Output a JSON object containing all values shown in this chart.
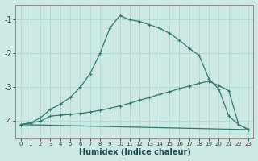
{
  "xlabel": "Humidex (Indice chaleur)",
  "bg_color": "#cce9e5",
  "grid_color": "#b0d8d0",
  "line_color": "#2d7a6e",
  "xlim": [
    -0.5,
    23.5
  ],
  "ylim": [
    -4.5,
    -0.55
  ],
  "yticks": [
    -1,
    -2,
    -3,
    -4
  ],
  "xticks": [
    0,
    1,
    2,
    3,
    4,
    5,
    6,
    7,
    8,
    9,
    10,
    11,
    12,
    13,
    14,
    15,
    16,
    17,
    18,
    19,
    20,
    21,
    22,
    23
  ],
  "line1_x": [
    0,
    1,
    2,
    3,
    4,
    5,
    6,
    7,
    8,
    9,
    10,
    11,
    12,
    13,
    14,
    15,
    16,
    17,
    18,
    19,
    20,
    21,
    22,
    23
  ],
  "line1_y": [
    -4.1,
    -4.05,
    -3.9,
    -3.65,
    -3.5,
    -3.3,
    -3.0,
    -2.6,
    -2.0,
    -1.25,
    -0.88,
    -1.0,
    -1.05,
    -1.15,
    -1.25,
    -1.4,
    -1.6,
    -1.85,
    -2.05,
    -2.75,
    -3.05,
    -3.85,
    -4.1,
    -4.25
  ],
  "line2_x": [
    0,
    1,
    2,
    3,
    4,
    5,
    6,
    7,
    8,
    9,
    10,
    11,
    12,
    13,
    14,
    15,
    16,
    17,
    18,
    19,
    20,
    21,
    22,
    23
  ],
  "line2_y": [
    -4.1,
    -4.05,
    -4.0,
    -3.85,
    -3.82,
    -3.8,
    -3.77,
    -3.73,
    -3.68,
    -3.62,
    -3.55,
    -3.47,
    -3.38,
    -3.3,
    -3.21,
    -3.13,
    -3.04,
    -2.96,
    -2.88,
    -2.82,
    -2.95,
    -3.1,
    -4.1,
    -4.25
  ],
  "line3_x": [
    0,
    23
  ],
  "line3_y": [
    -4.1,
    -4.25
  ]
}
